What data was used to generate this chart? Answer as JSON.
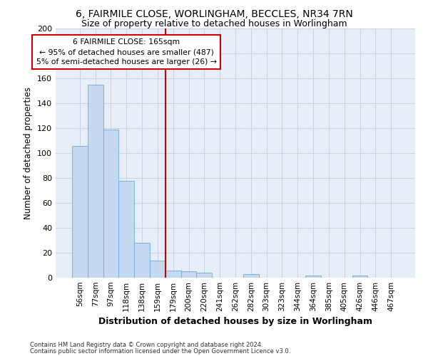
{
  "title1": "6, FAIRMILE CLOSE, WORLINGHAM, BECCLES, NR34 7RN",
  "title2": "Size of property relative to detached houses in Worlingham",
  "xlabel": "Distribution of detached houses by size in Worlingham",
  "ylabel": "Number of detached properties",
  "bin_labels": [
    "56sqm",
    "77sqm",
    "97sqm",
    "118sqm",
    "138sqm",
    "159sqm",
    "179sqm",
    "200sqm",
    "220sqm",
    "241sqm",
    "262sqm",
    "282sqm",
    "303sqm",
    "323sqm",
    "344sqm",
    "364sqm",
    "385sqm",
    "405sqm",
    "426sqm",
    "446sqm",
    "467sqm"
  ],
  "bar_values": [
    106,
    155,
    119,
    78,
    28,
    14,
    6,
    5,
    4,
    0,
    0,
    3,
    0,
    0,
    0,
    2,
    0,
    0,
    2,
    0,
    0
  ],
  "bar_color": "#c5d8f0",
  "bar_edge_color": "#6aaad4",
  "vline_index": 6,
  "vline_color": "#cc0000",
  "annotation_text": "6 FAIRMILE CLOSE: 165sqm\n← 95% of detached houses are smaller (487)\n5% of semi-detached houses are larger (26) →",
  "annotation_box_color": "#ffffff",
  "annotation_box_edge": "#cc0000",
  "ylim": [
    0,
    200
  ],
  "yticks": [
    0,
    20,
    40,
    60,
    80,
    100,
    120,
    140,
    160,
    180,
    200
  ],
  "footer1": "Contains HM Land Registry data © Crown copyright and database right 2024.",
  "footer2": "Contains public sector information licensed under the Open Government Licence v3.0.",
  "grid_color": "#c8d4e8",
  "background_color": "#e8eef8"
}
